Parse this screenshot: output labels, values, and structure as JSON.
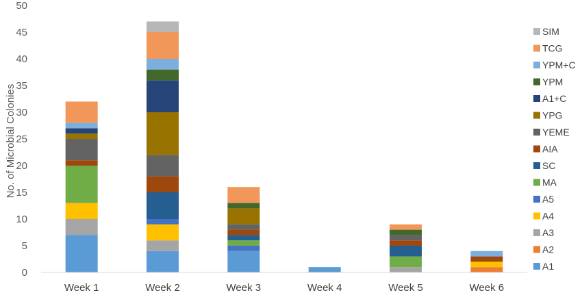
{
  "chart_data": {
    "type": "bar",
    "stacked": true,
    "title": "",
    "xlabel": "",
    "ylabel": "No. of Microbial Colonies",
    "ylim": [
      0,
      50
    ],
    "yticks": [
      "0",
      "5",
      "10",
      "15",
      "20",
      "25",
      "30",
      "35",
      "40",
      "45",
      "50"
    ],
    "grid": false,
    "legend_position": "right",
    "categories": [
      "Week 1",
      "Week 2",
      "Week 3",
      "Week 4",
      "Week 5",
      "Week 6"
    ],
    "series": [
      {
        "name": "A1",
        "color": "#5b9bd5",
        "values": [
          7,
          4,
          4,
          1,
          0,
          0
        ]
      },
      {
        "name": "A2",
        "color": "#ed7d31",
        "values": [
          0,
          0,
          0,
          0,
          0,
          1
        ]
      },
      {
        "name": "A3",
        "color": "#a5a5a5",
        "values": [
          3,
          2,
          0,
          0,
          1,
          0
        ]
      },
      {
        "name": "A4",
        "color": "#ffc000",
        "values": [
          3,
          3,
          0,
          0,
          0,
          1
        ]
      },
      {
        "name": "A5",
        "color": "#4472c4",
        "values": [
          0,
          1,
          1,
          0,
          0,
          0
        ]
      },
      {
        "name": "MA",
        "color": "#70ad47",
        "values": [
          7,
          0,
          1,
          0,
          2,
          0
        ]
      },
      {
        "name": "SC",
        "color": "#255e91",
        "values": [
          0,
          5,
          1,
          0,
          2,
          0
        ]
      },
      {
        "name": "AIA",
        "color": "#9e480e",
        "values": [
          1,
          3,
          1,
          0,
          1,
          1
        ]
      },
      {
        "name": "YEME",
        "color": "#636363",
        "values": [
          4,
          4,
          1,
          0,
          1,
          0
        ]
      },
      {
        "name": "YPG",
        "color": "#997300",
        "values": [
          1,
          8,
          3,
          0,
          0,
          0
        ]
      },
      {
        "name": "A1+C",
        "color": "#264478",
        "values": [
          1,
          6,
          0,
          0,
          0,
          0
        ]
      },
      {
        "name": "YPM",
        "color": "#43682b",
        "values": [
          0,
          2,
          1,
          0,
          1,
          0
        ]
      },
      {
        "name": "YPM+C",
        "color": "#7cafdd",
        "values": [
          1,
          2,
          0,
          0,
          0,
          1
        ]
      },
      {
        "name": "TCG",
        "color": "#f1975a",
        "values": [
          4,
          5,
          3,
          0,
          1,
          0
        ]
      },
      {
        "name": "SIM",
        "color": "#b7b7b7",
        "values": [
          0,
          2,
          0,
          0,
          0,
          0
        ]
      }
    ]
  }
}
